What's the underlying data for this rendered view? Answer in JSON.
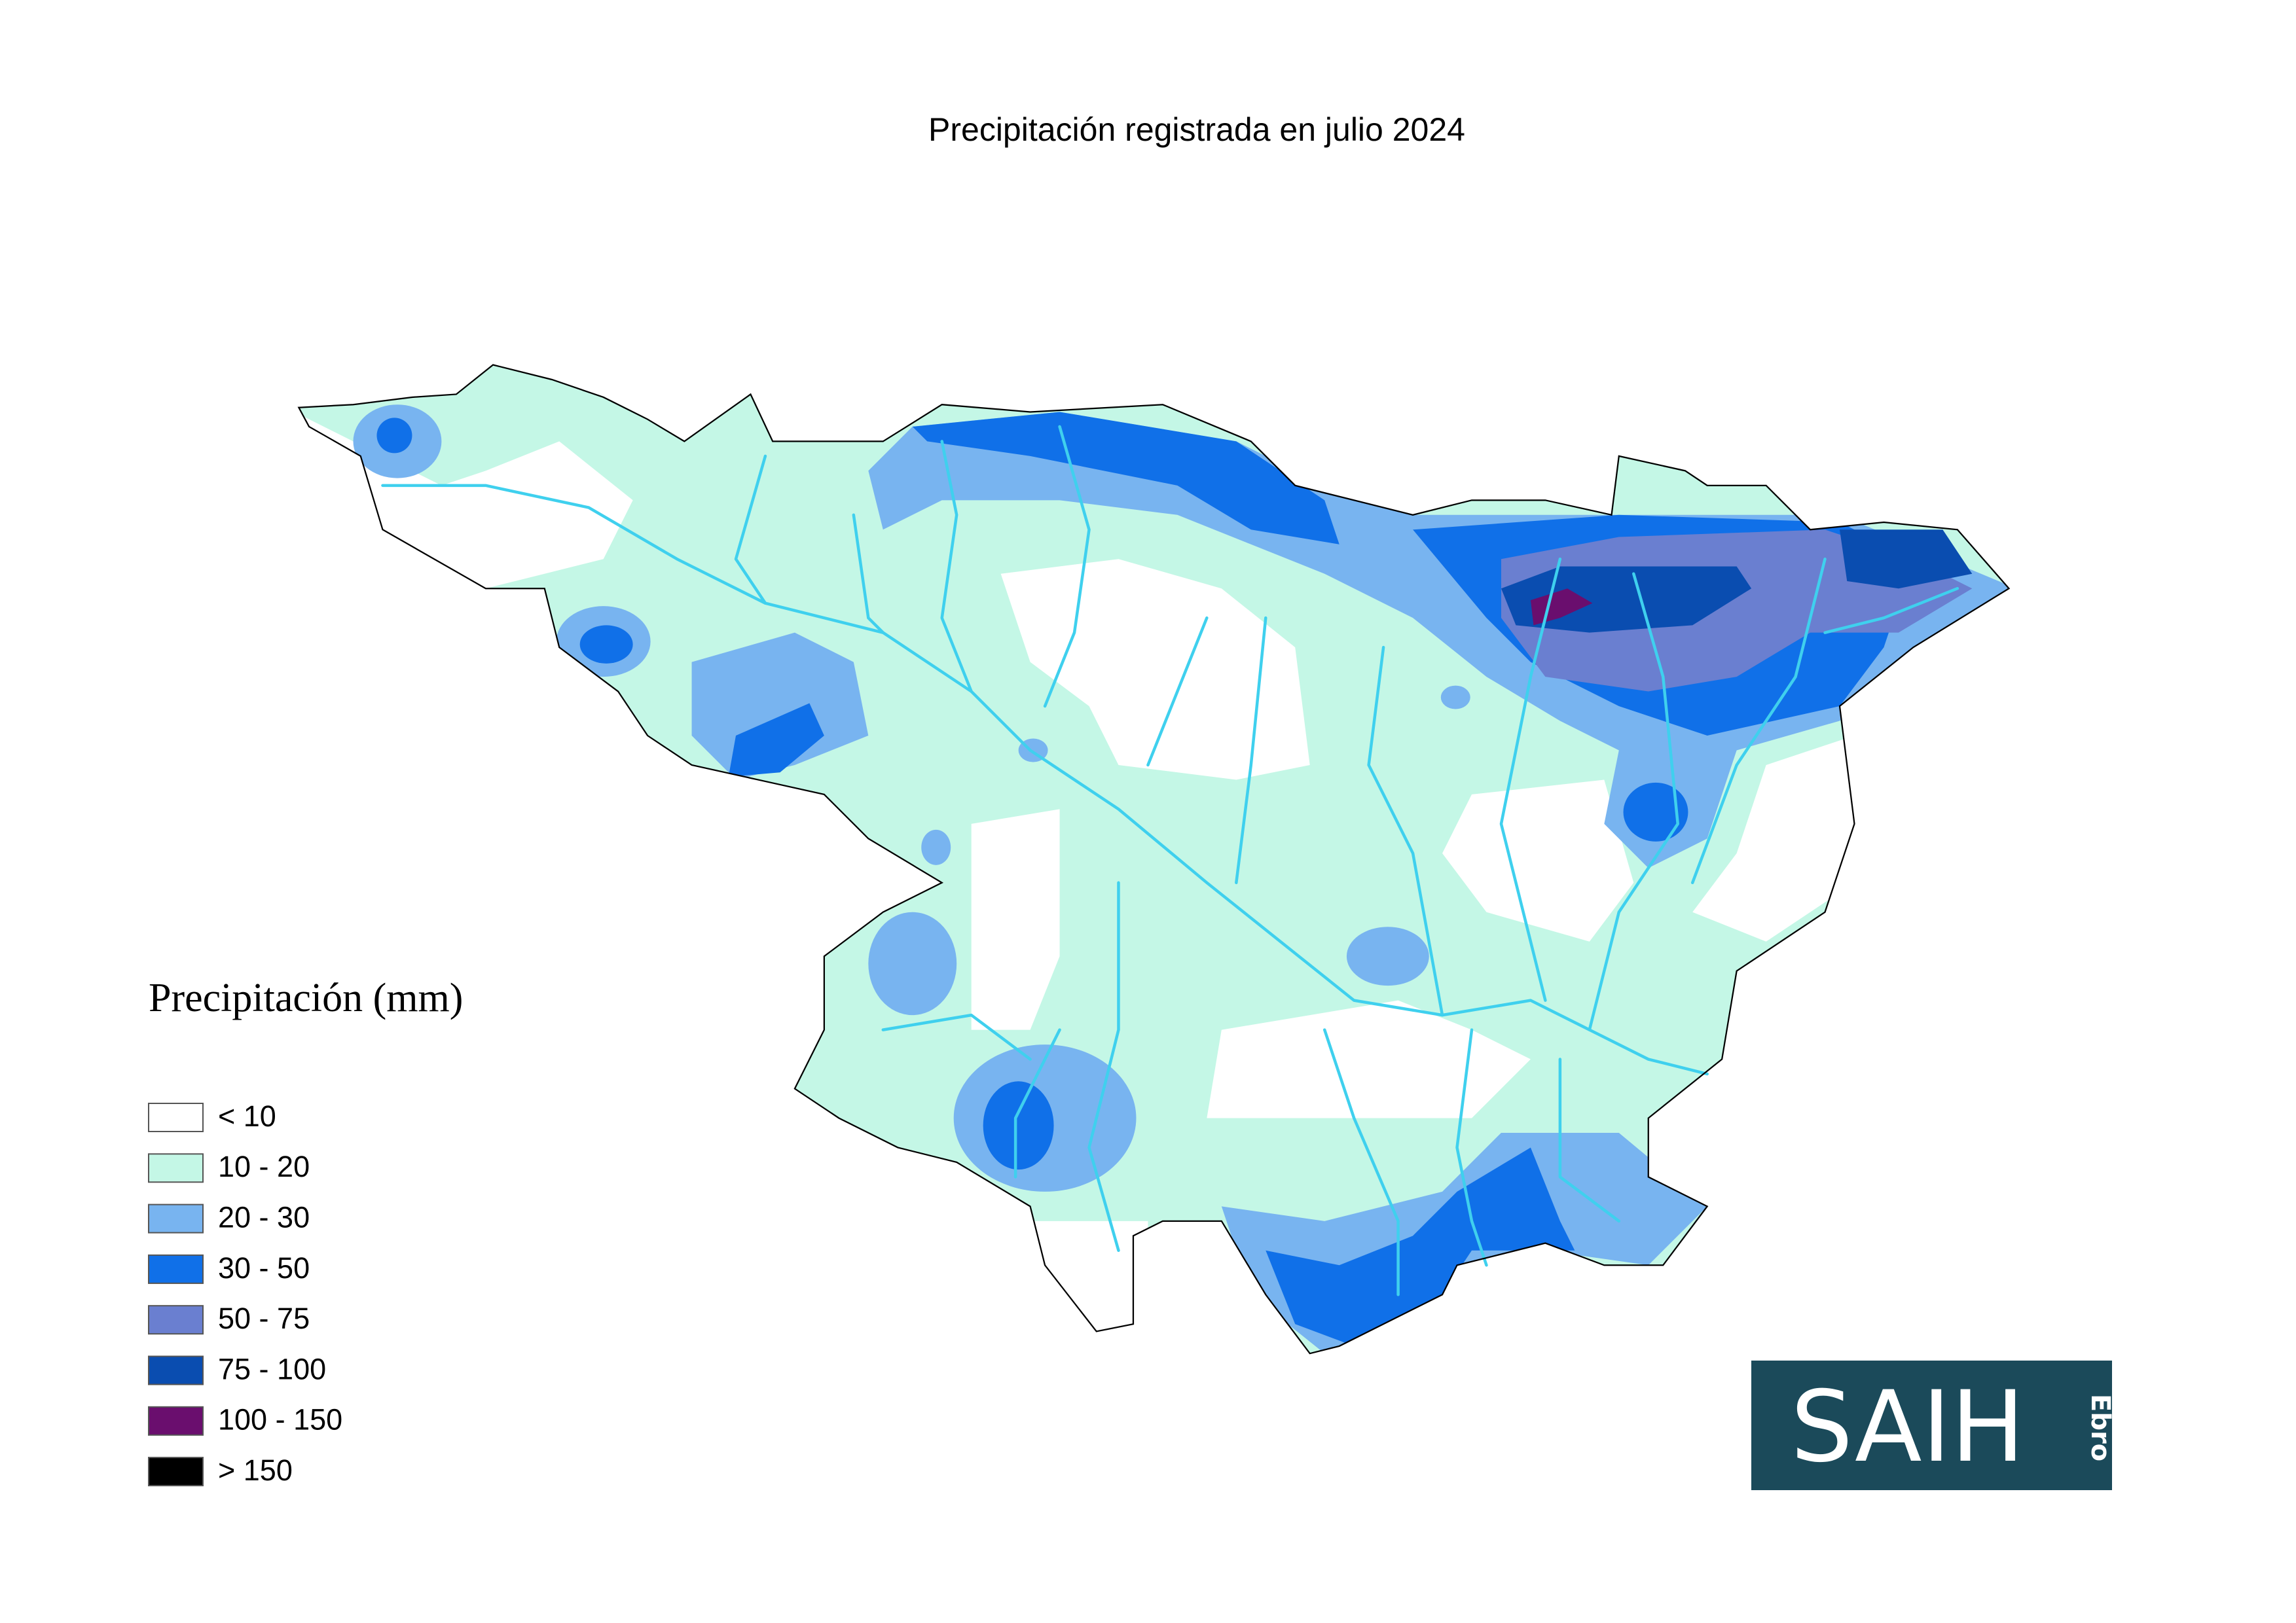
{
  "title": "Precipitación registrada en julio 2024",
  "legend": {
    "title": "Precipitación (mm)",
    "items": [
      {
        "label": "< 10",
        "color": "#ffffff"
      },
      {
        "label": "10 - 20",
        "color": "#c4f7e6"
      },
      {
        "label": "20 - 30",
        "color": "#78b4f0"
      },
      {
        "label": "30 - 50",
        "color": "#1070e8"
      },
      {
        "label": "50 - 75",
        "color": "#6a7fd0"
      },
      {
        "label": "75 - 100",
        "color": "#0a4db0"
      },
      {
        "label": "100 - 150",
        "color": "#6a0e6e"
      },
      {
        "label": "> 150",
        "color": "#000000"
      }
    ]
  },
  "logo": {
    "main": "SAIH",
    "sub": "Ebro"
  }
}
